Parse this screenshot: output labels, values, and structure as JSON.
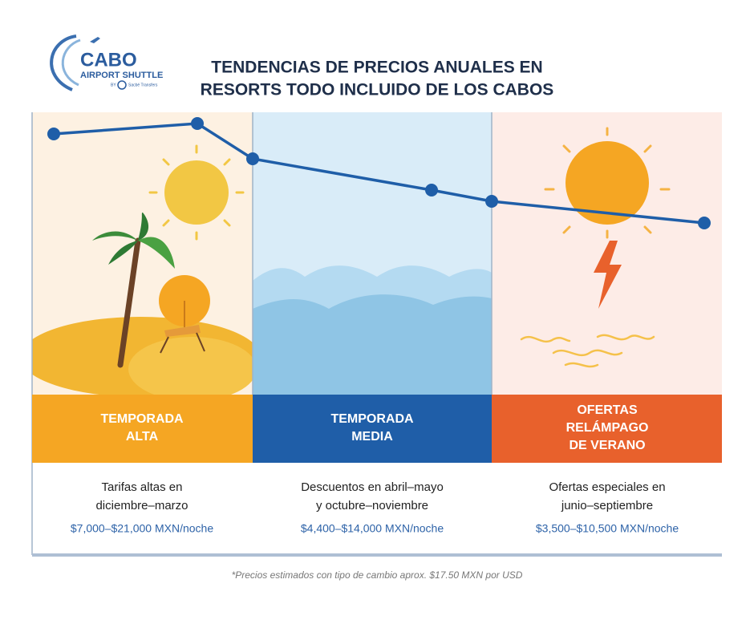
{
  "logo": {
    "brand": "CABO",
    "name": "AIRPORT SHUTTLE",
    "by": "BY",
    "partner": "Sacbé Transfers"
  },
  "header": {
    "title": [
      "TENDENCIAS DE PRECIOS ANUALES EN",
      "RESORTS TODO INCLUIDO DE LOS CABOS"
    ]
  },
  "seasons": [
    {
      "title": [
        "TEMPORADA",
        "ALTA"
      ],
      "description": [
        "Tarifas altas en",
        "diciembre–marzo"
      ],
      "price": "$7,000–$21,000 MXN/noche"
    },
    {
      "title": [
        "TEMPORADA",
        "MEDIA"
      ],
      "description": [
        "Descuentos en abril–mayo",
        "y octubre–noviembre"
      ],
      "price": "$4,400–$14,000 MXN/noche"
    },
    {
      "title": [
        "OFERTAS",
        "RELÁMPAGO",
        "DE VERANO"
      ],
      "description": [
        "Ofertas especiales en",
        "junio–septiembre"
      ],
      "price": "$3,500–$10,500 MXN/noche"
    }
  ],
  "footnote": "*Precios estimados con tipo de cambio aprox. $17.50 MXN por USD"
}
